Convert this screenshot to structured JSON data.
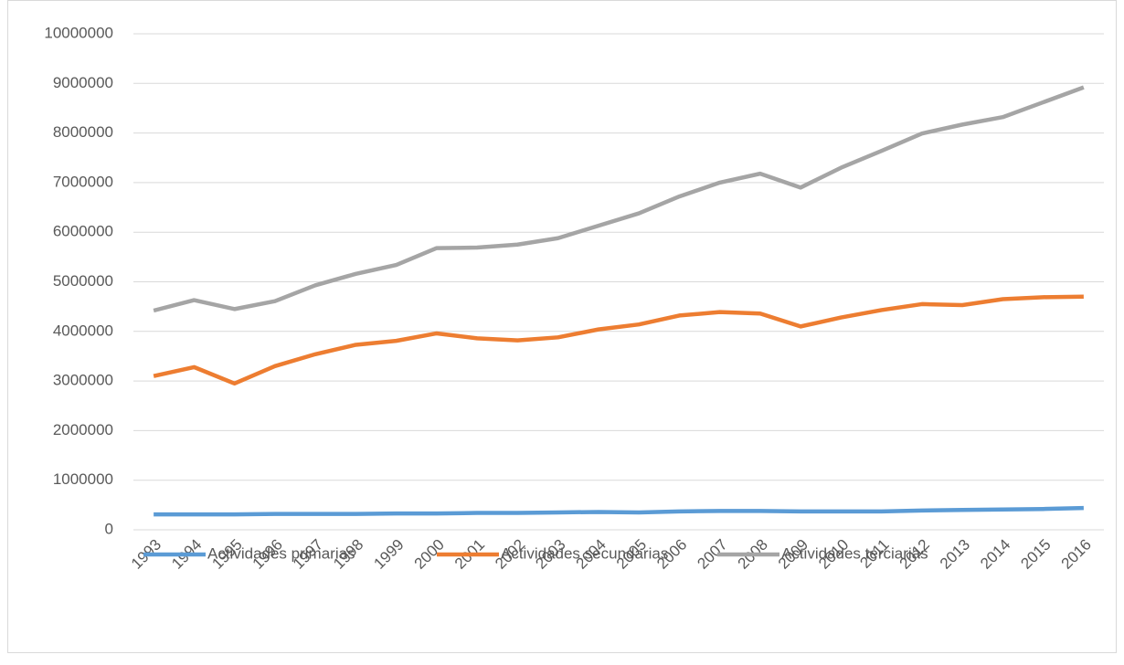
{
  "chart_data": {
    "type": "line",
    "categories": [
      "1993",
      "1994",
      "1995",
      "1996",
      "1997",
      "1998",
      "1999",
      "2000",
      "2001",
      "2002",
      "2003",
      "2004",
      "2005",
      "2006",
      "2007",
      "2008",
      "2009",
      "2010",
      "2011",
      "2012",
      "2013",
      "2014",
      "2015",
      "2016"
    ],
    "series": [
      {
        "name": "Actividades primarias",
        "color": "#5b9bd5",
        "values": [
          310000,
          310000,
          310000,
          320000,
          320000,
          320000,
          330000,
          330000,
          340000,
          340000,
          350000,
          360000,
          350000,
          370000,
          380000,
          380000,
          370000,
          370000,
          370000,
          390000,
          400000,
          410000,
          420000,
          440000
        ]
      },
      {
        "name": "Actividades secundarias",
        "color": "#ed7d31",
        "values": [
          3100000,
          3280000,
          2950000,
          3300000,
          3540000,
          3730000,
          3810000,
          3960000,
          3860000,
          3820000,
          3880000,
          4040000,
          4140000,
          4320000,
          4390000,
          4360000,
          4100000,
          4280000,
          4430000,
          4550000,
          4530000,
          4650000,
          4690000,
          4700000
        ]
      },
      {
        "name": "Actividades terciarias",
        "color": "#a5a5a5",
        "values": [
          4420000,
          4630000,
          4450000,
          4610000,
          4930000,
          5160000,
          5340000,
          5680000,
          5690000,
          5750000,
          5880000,
          6130000,
          6380000,
          6720000,
          7000000,
          7180000,
          6900000,
          7300000,
          7640000,
          7990000,
          8170000,
          8320000,
          8620000,
          8920000
        ]
      }
    ],
    "ylim": [
      0,
      10000000
    ],
    "yticks": [
      0,
      1000000,
      2000000,
      3000000,
      4000000,
      5000000,
      6000000,
      7000000,
      8000000,
      9000000,
      10000000
    ],
    "grid": true,
    "legend": "bottom"
  }
}
